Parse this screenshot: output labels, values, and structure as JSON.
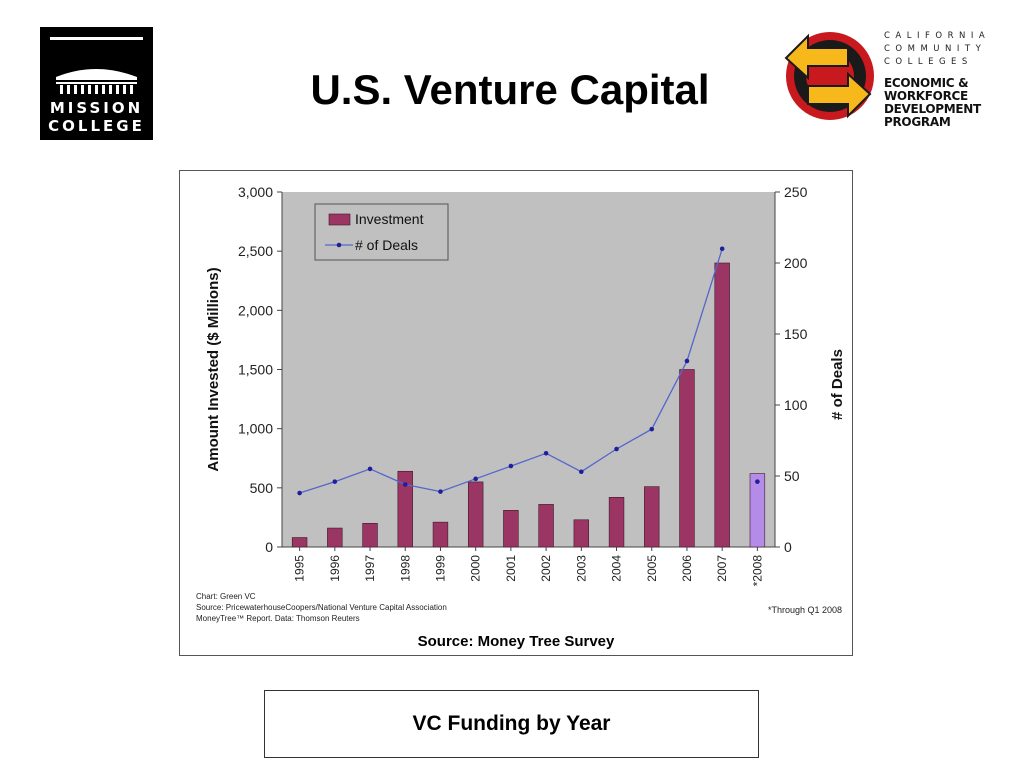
{
  "header": {
    "title": "U.S. Venture Capital",
    "left_logo": {
      "line1": "MISSION",
      "line2": "COLLEGE"
    },
    "right_logo": {
      "lines_small": [
        "CALIFORNIA",
        "COMMUNITY",
        "COLLEGES"
      ],
      "lines_big": [
        "ECONOMIC &",
        "WORKFORCE",
        "DEVELOPMENT",
        "PROGRAM"
      ]
    }
  },
  "chart_notes": {
    "lines": [
      "Chart: Green VC",
      "Source: PricewaterhouseCoopers/National Venture Capital Association",
      "MoneyTree™ Report.  Data: Thomson Reuters"
    ],
    "footnote": "*Through Q1 2008",
    "source_caption": "Source: Money Tree Survey"
  },
  "caption": "VC Funding by Year",
  "colors": {
    "bar": "#9b3563",
    "bar_partial": "#b58be8",
    "line": "#5566cc",
    "marker": "#1f1f9e",
    "plot_bg": "#c0c0c0"
  },
  "chart_data": {
    "type": "bar",
    "categories": [
      "1995",
      "1996",
      "1997",
      "1998",
      "1999",
      "2000",
      "2001",
      "2002",
      "2003",
      "2004",
      "2005",
      "2006",
      "2007",
      "*2008"
    ],
    "ylabel": "Amount Invested ($ Millions)",
    "y2label": "# of Deals",
    "ylim": [
      0,
      3000
    ],
    "y2lim": [
      0,
      250
    ],
    "yticks": [
      0,
      500,
      1000,
      1500,
      2000,
      2500,
      3000
    ],
    "ytick_labels": [
      "0",
      "500",
      "1,000",
      "1,500",
      "2,000",
      "2,500",
      "3,000"
    ],
    "y2ticks": [
      0,
      50,
      100,
      150,
      200,
      250
    ],
    "y2tick_labels": [
      "0",
      "50",
      "100",
      "150",
      "200",
      "250"
    ],
    "legend_position": "top-left",
    "grid": false,
    "series": [
      {
        "name": "Investment",
        "type": "bar",
        "axis": "left",
        "values": [
          80,
          160,
          200,
          640,
          210,
          550,
          310,
          360,
          230,
          420,
          510,
          1500,
          2400,
          620
        ]
      },
      {
        "name": "# of Deals",
        "type": "line",
        "axis": "right",
        "values": [
          38,
          46,
          55,
          44,
          39,
          48,
          57,
          66,
          53,
          69,
          83,
          131,
          210,
          46
        ]
      }
    ]
  }
}
